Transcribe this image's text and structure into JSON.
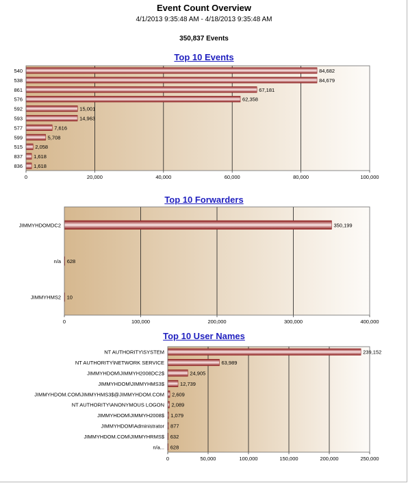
{
  "report": {
    "title": "Event Count Overview",
    "date_range": "4/1/2013 9:35:48 AM - 4/18/2013 9:35:48 AM",
    "total_events": "350,837 Events"
  },
  "colors": {
    "title_link": "#1f1fbf",
    "bar_dark": "#8c1c1c",
    "bar_light": "#fbe8e8",
    "plot_left": "#d6b88f",
    "plot_right": "#fdfbf8"
  },
  "chart_data": [
    {
      "type": "bar",
      "orientation": "horizontal",
      "title": "Top 10 Events",
      "categories": [
        "540",
        "538",
        "861",
        "576",
        "592",
        "593",
        "577",
        "599",
        "515",
        "837",
        "836"
      ],
      "values": [
        84682,
        84679,
        67181,
        62358,
        15001,
        14963,
        7616,
        5708,
        2058,
        1618,
        1618
      ],
      "value_labels": [
        "84,682",
        "84,679",
        "67,181",
        "62,358",
        "15,001",
        "14,963",
        "7,616",
        "5,708",
        "2,058",
        "1,618",
        "1,618"
      ],
      "xlim": [
        0,
        100000
      ],
      "xticks": [
        0,
        20000,
        40000,
        60000,
        80000,
        100000
      ],
      "xtick_labels": [
        "0",
        "20,000",
        "40,000",
        "60,000",
        "80,000",
        "100,000"
      ],
      "grid": true
    },
    {
      "type": "bar",
      "orientation": "horizontal",
      "title": "Top 10 Forwarders",
      "categories": [
        "JIMMYHDOMDC2",
        "n/a",
        "JIMMYHMS2"
      ],
      "values": [
        350199,
        628,
        10
      ],
      "value_labels": [
        "350,199",
        "628",
        "10"
      ],
      "xlim": [
        0,
        400000
      ],
      "xticks": [
        0,
        100000,
        200000,
        300000,
        400000
      ],
      "xtick_labels": [
        "0",
        "100,000",
        "200,000",
        "300,000",
        "400,000"
      ],
      "grid": true
    },
    {
      "type": "bar",
      "orientation": "horizontal",
      "title": "Top 10 User Names",
      "categories": [
        "NT AUTHORITY\\SYSTEM",
        "NT AUTHORITY\\NETWORK SERVICE",
        "JIMMYHDOM\\JIMMYH2008DC2$",
        "JIMMYHDOM\\JIMMYHMS3$",
        "JIMMYHDOM.COM\\JIMMYHMS3$@JIMMYHDOM.COM",
        "NT AUTHORITY\\ANONYMOUS LOGON",
        "JIMMYHDOM\\JIMMYH2008$",
        "JIMMYHDOM\\Administrator",
        "JIMMYHDOM.COM\\JIMMYHRMS$",
        "n/a..."
      ],
      "values": [
        239152,
        63989,
        24905,
        12739,
        2609,
        2089,
        1079,
        877,
        632,
        628
      ],
      "value_labels": [
        "239,152",
        "63,989",
        "24,905",
        "12,739",
        "2,609",
        "2,089",
        "1,079",
        "877",
        "632",
        "628"
      ],
      "xlim": [
        0,
        250000
      ],
      "xticks": [
        0,
        50000,
        100000,
        150000,
        200000,
        250000
      ],
      "xtick_labels": [
        "0",
        "50,000",
        "100,000",
        "150,000",
        "200,000",
        "250,000"
      ],
      "grid": true
    }
  ]
}
